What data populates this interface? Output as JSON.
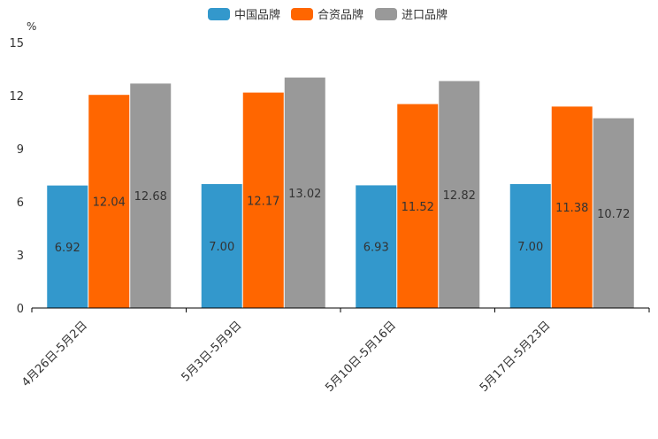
{
  "chart_data": {
    "type": "bar",
    "title": "",
    "ylabel": "%",
    "xlabel": "",
    "ylim": [
      0,
      15
    ],
    "yticks": [
      0,
      3,
      6,
      9,
      12,
      15
    ],
    "categories": [
      "4月26日-5月2日",
      "5月3日-5月9日",
      "5月10日-5月16日",
      "5月17日-5月23日"
    ],
    "series": [
      {
        "name": "中国品牌",
        "color": "#3398cc",
        "values": [
          6.92,
          7.0,
          6.93,
          7.0
        ]
      },
      {
        "name": "合资品牌",
        "color": "#ff6600",
        "values": [
          12.04,
          12.17,
          11.52,
          11.38
        ]
      },
      {
        "name": "进口品牌",
        "color": "#999999",
        "values": [
          12.68,
          13.02,
          12.82,
          10.72
        ]
      }
    ],
    "value_labels": [
      [
        "6.92",
        "7.00",
        "6.93",
        "7.00"
      ],
      [
        "12.04",
        "12.17",
        "11.52",
        "11.38"
      ],
      [
        "12.68",
        "13.02",
        "12.82",
        "10.72"
      ]
    ],
    "legend_position": "top-center",
    "grid": false
  }
}
